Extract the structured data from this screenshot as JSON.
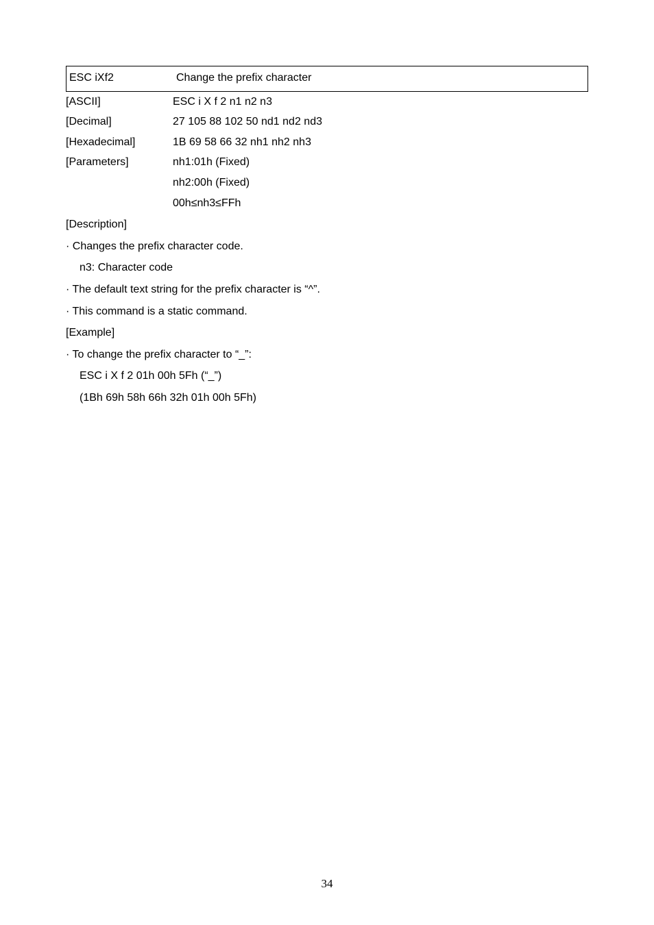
{
  "command": {
    "name": "ESC iXf2",
    "title": "Change the prefix character"
  },
  "rows": {
    "ascii": {
      "label": "[ASCII]",
      "value": "ESC i X f 2 n1 n2 n3"
    },
    "decimal": {
      "label": "[Decimal]",
      "value": "27 105 88 102 50 nd1 nd2 nd3"
    },
    "hex": {
      "label": "[Hexadecimal]",
      "value": "1B 69 58 66 32 nh1 nh2 nh3"
    },
    "params": {
      "label": "[Parameters]",
      "value": "nh1:01h (Fixed)"
    },
    "params2": {
      "value": "nh2:00h (Fixed)"
    },
    "params3": {
      "value": "00h≤nh3≤FFh"
    }
  },
  "description": {
    "heading": "[Description]",
    "line1": "Changes the prefix character code.",
    "line1a": "n3: Character code",
    "line2": "The default text string for the prefix character is “^”.",
    "line3": "This command is a static command."
  },
  "example": {
    "heading": "[Example]",
    "line1": "To change the prefix character to “_”:",
    "line2": "ESC i X f 2 01h 00h 5Fh (“_”)",
    "line3": "(1Bh 69h 58h 66h 32h 01h 00h 5Fh)"
  },
  "page_number": "34"
}
